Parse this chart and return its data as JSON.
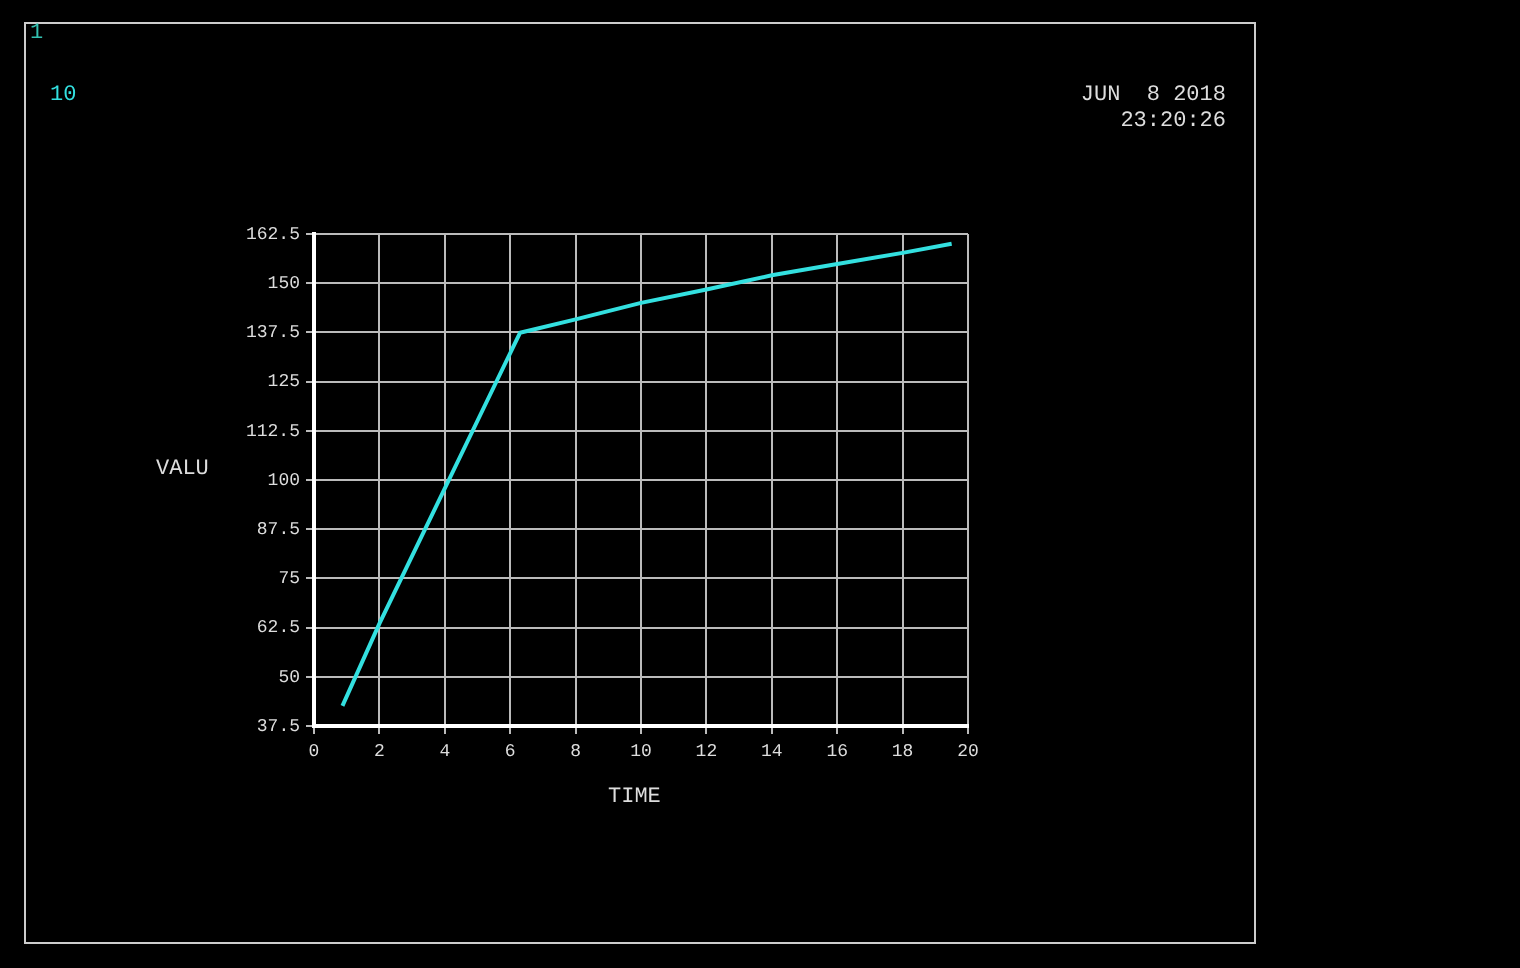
{
  "chart_data": {
    "type": "line",
    "xlabel": "TIME",
    "ylabel": "VALU",
    "annotations": [
      "1",
      "JUN  8 2018",
      "23:20:26"
    ],
    "x": [
      0.87,
      2.0,
      6.3,
      8.0,
      10.0,
      12.0,
      14.0,
      16.0,
      18.0,
      19.5
    ],
    "series": [
      {
        "name": "10",
        "color": "#33e0e0",
        "values": [
          42.6,
          63.5,
          137.4,
          140.8,
          145.0,
          148.4,
          152.0,
          154.9,
          157.7,
          160.0
        ]
      }
    ],
    "xlim": [
      0,
      20
    ],
    "xticks": [
      0,
      2,
      4,
      6,
      8,
      10,
      12,
      14,
      16,
      18,
      20
    ],
    "ylim": [
      37.5,
      162.5
    ],
    "yticks": [
      37.5,
      50,
      62.5,
      75,
      87.5,
      100,
      112.5,
      125,
      137.5,
      150,
      162.5
    ],
    "grid": true,
    "legend": "top left",
    "marker": "none",
    "line_style": "solid"
  }
}
